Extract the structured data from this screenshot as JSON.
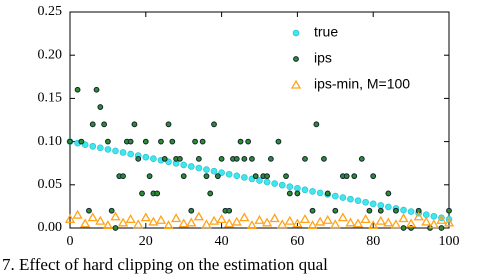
{
  "chart_data": {
    "type": "scatter",
    "caption": "7. Effect of hard clipping on the estimation qual",
    "xlim": [
      0,
      100
    ],
    "xticks": [
      0,
      20,
      40,
      60,
      80,
      100
    ],
    "ylim": [
      0,
      0.25
    ],
    "yticks": [
      {
        "value": 0,
        "label": "0.00"
      },
      {
        "value": 0.05,
        "label": "0.05"
      },
      {
        "value": 0.1,
        "label": "0.10"
      },
      {
        "value": 0.15,
        "label": "0.15"
      },
      {
        "value": 0.2,
        "label": "0.20"
      },
      {
        "value": 0.25,
        "label": "0.25"
      }
    ],
    "legend": "upper right",
    "series": [
      {
        "name": "true",
        "color": "#3ee6ee",
        "marker": "circle",
        "x": [
          0,
          2,
          4,
          6,
          8,
          10,
          12,
          14,
          16,
          18,
          20,
          22,
          24,
          26,
          28,
          30,
          32,
          34,
          36,
          38,
          40,
          42,
          44,
          46,
          48,
          50,
          52,
          54,
          56,
          58,
          60,
          62,
          64,
          66,
          68,
          70,
          72,
          74,
          76,
          78,
          80,
          82,
          84,
          86,
          88,
          90,
          92,
          94,
          96,
          98,
          100
        ],
        "values": [
          0.1,
          0.0982,
          0.0964,
          0.0946,
          0.0928,
          0.091,
          0.0892,
          0.0874,
          0.0856,
          0.0838,
          0.082,
          0.0802,
          0.0784,
          0.0766,
          0.0748,
          0.073,
          0.0712,
          0.0694,
          0.0676,
          0.0658,
          0.064,
          0.0622,
          0.0604,
          0.0586,
          0.0568,
          0.055,
          0.0532,
          0.0514,
          0.0496,
          0.0478,
          0.046,
          0.0442,
          0.0424,
          0.0406,
          0.0388,
          0.037,
          0.0352,
          0.0334,
          0.0316,
          0.0298,
          0.028,
          0.0262,
          0.0244,
          0.0226,
          0.0208,
          0.019,
          0.0172,
          0.0154,
          0.0136,
          0.0118,
          0.01
        ]
      },
      {
        "name": "ips",
        "color": "#2e8b2e",
        "marker": "ring",
        "x": [
          0,
          2,
          3,
          5,
          6,
          7,
          8,
          9,
          10,
          11,
          12,
          13,
          14,
          15,
          16,
          17,
          18,
          19,
          20,
          21,
          22,
          23,
          24,
          25,
          26,
          27,
          28,
          29,
          30,
          32,
          33,
          34,
          35,
          36,
          37,
          38,
          39,
          40,
          41,
          42,
          43,
          44,
          45,
          46,
          47,
          48,
          49,
          51,
          52,
          53,
          55,
          57,
          58,
          60,
          62,
          64,
          65,
          67,
          68,
          70,
          72,
          73,
          75,
          77,
          79,
          80,
          82,
          84,
          86,
          88,
          90,
          92,
          95,
          98,
          100
        ],
        "values": [
          0.1,
          0.16,
          0.1,
          0.02,
          0.12,
          0.16,
          0.14,
          0.12,
          0.1,
          0.02,
          0,
          0.06,
          0.06,
          0.1,
          0.1,
          0.12,
          0.08,
          0.04,
          0.1,
          0.06,
          0.04,
          0.04,
          0.1,
          0.08,
          0.12,
          0.1,
          0.08,
          0.08,
          0.06,
          0.02,
          0.1,
          0.08,
          0.1,
          0.06,
          0.04,
          0.12,
          0.06,
          0.08,
          0.02,
          0.02,
          0.08,
          0.08,
          0.1,
          0.08,
          0.1,
          0.08,
          0.06,
          0.06,
          0.06,
          0.08,
          0.1,
          0.06,
          0.04,
          0.04,
          0.08,
          0.02,
          0.12,
          0.08,
          0.04,
          0.02,
          0.06,
          0.06,
          0.06,
          0.08,
          0.02,
          0.06,
          0.02,
          0.04,
          0.02,
          0,
          0,
          0.02,
          0,
          0,
          0.02
        ]
      },
      {
        "name": "ips-min, M=100",
        "color": "#ffa31a",
        "marker": "triangle",
        "x": [
          0,
          2,
          4,
          6,
          8,
          10,
          12,
          14,
          16,
          18,
          20,
          22,
          24,
          26,
          28,
          30,
          32,
          34,
          36,
          38,
          40,
          42,
          44,
          46,
          48,
          50,
          52,
          54,
          56,
          58,
          60,
          62,
          64,
          66,
          68,
          70,
          72,
          74,
          76,
          78,
          80,
          82,
          84,
          86,
          88,
          90,
          92,
          94,
          96,
          98,
          100
        ],
        "values": [
          0.01,
          0.015,
          0.005,
          0.012,
          0.008,
          0.003,
          0.013,
          0.006,
          0.01,
          0.004,
          0.012,
          0.007,
          0.009,
          0.003,
          0.011,
          0.005,
          0.006,
          0.013,
          0.004,
          0.008,
          0.01,
          0.005,
          0.007,
          0.012,
          0.003,
          0.009,
          0.006,
          0.011,
          0.004,
          0.008,
          0.005,
          0.01,
          0.003,
          0.007,
          0.009,
          0.004,
          0.012,
          0.006,
          0.005,
          0.01,
          0.003,
          0.008,
          0.006,
          0.004,
          0.011,
          0.005,
          0.013,
          0.007,
          0.004,
          0.009,
          0.006
        ]
      }
    ]
  }
}
